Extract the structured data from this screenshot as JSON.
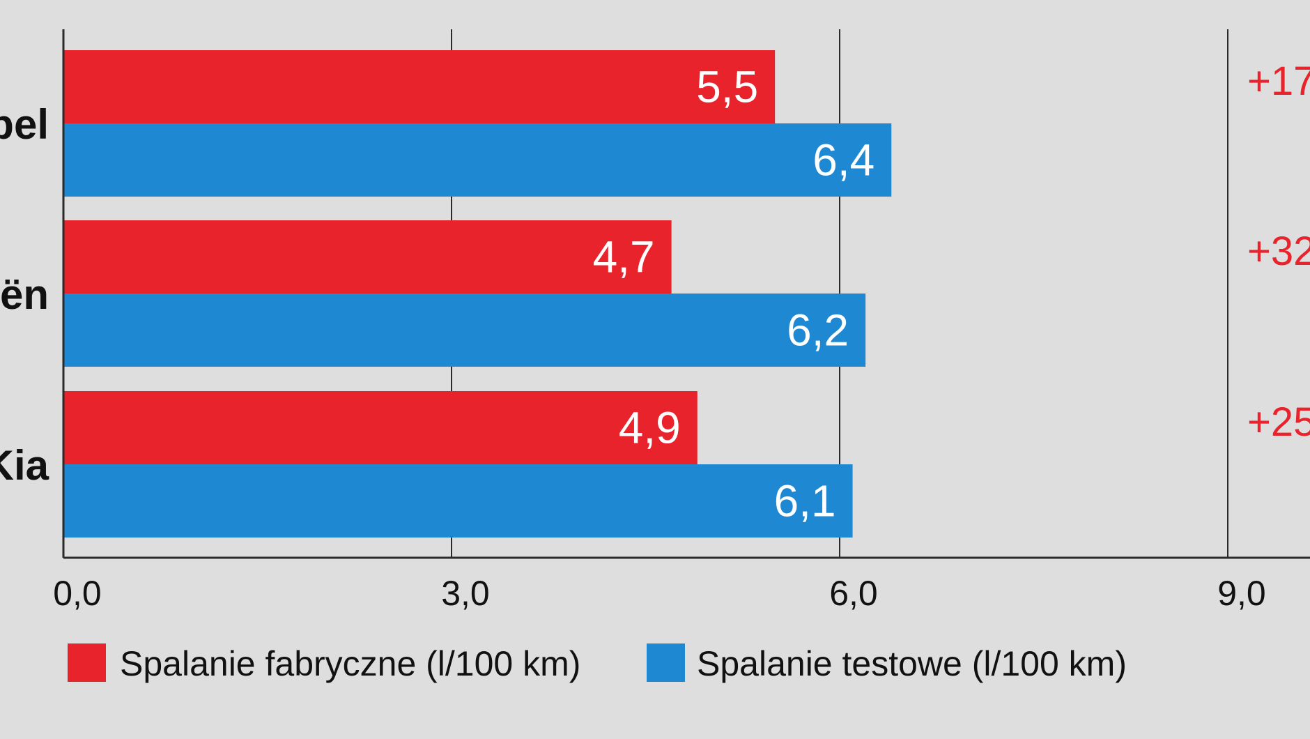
{
  "chart_data": {
    "type": "bar",
    "orientation": "horizontal",
    "categories": [
      "pel",
      "oën",
      "Kia"
    ],
    "series": [
      {
        "name": "Spalanie fabryczne (l/100 km)",
        "values": [
          5.5,
          4.7,
          4.9
        ],
        "labels": [
          "5,5",
          "4,7",
          "4,9"
        ],
        "color": "#e8232b"
      },
      {
        "name": "Spalanie testowe (l/100 km)",
        "values": [
          6.4,
          6.2,
          6.1
        ],
        "labels": [
          "6,4",
          "6,2",
          "6,1"
        ],
        "color": "#1e88d3"
      }
    ],
    "differences": [
      "+17",
      "+32",
      "+25"
    ],
    "difference_color": "#e8232b",
    "xlim": [
      0,
      9.2
    ],
    "ticks": [
      0,
      3,
      6,
      9
    ],
    "tick_labels": [
      "0,0",
      "3,0",
      "6,0",
      "9,0"
    ],
    "grid": true,
    "legend_position": "bottom"
  }
}
